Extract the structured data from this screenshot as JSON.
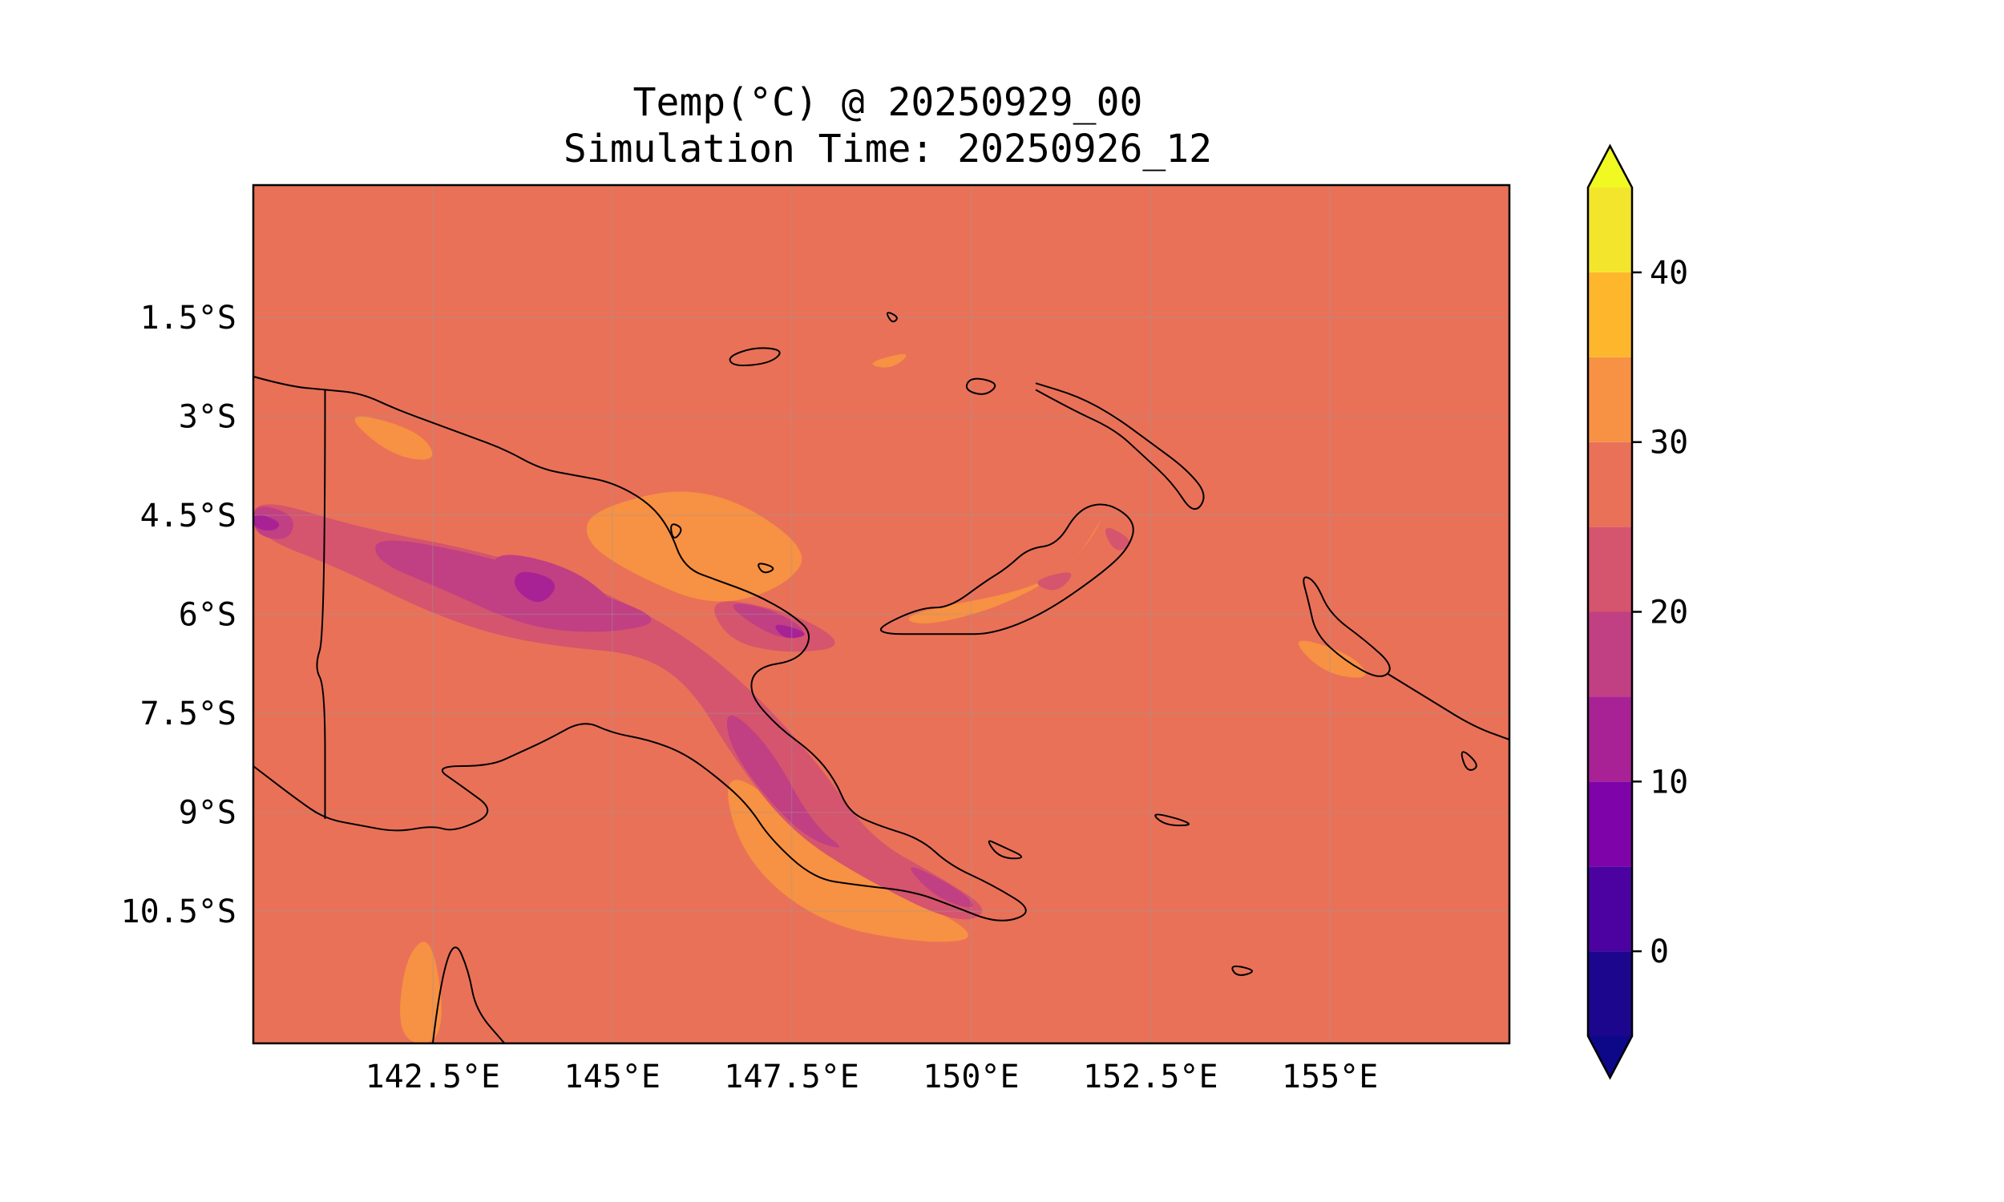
{
  "chart_data": {
    "type": "heatmap",
    "title": "Temp(°C) @ 20250929_00",
    "subtitle": "Simulation Time: 20250926_12",
    "x_range": [
      140.0,
      157.5
    ],
    "y_range": [
      -12.5,
      0.5
    ],
    "x_ticks": [
      {
        "value": 142.5,
        "label": "142.5°E"
      },
      {
        "value": 145.0,
        "label": "145°E"
      },
      {
        "value": 147.5,
        "label": "147.5°E"
      },
      {
        "value": 150.0,
        "label": "150°E"
      },
      {
        "value": 152.5,
        "label": "152.5°E"
      },
      {
        "value": 155.0,
        "label": "155°E"
      }
    ],
    "y_ticks": [
      {
        "value": -1.5,
        "label": "1.5°S"
      },
      {
        "value": -3.0,
        "label": "3°S"
      },
      {
        "value": -4.5,
        "label": "4.5°S"
      },
      {
        "value": -6.0,
        "label": "6°S"
      },
      {
        "value": -7.5,
        "label": "7.5°S"
      },
      {
        "value": -9.0,
        "label": "9°S"
      },
      {
        "value": -10.5,
        "label": "10.5°S"
      }
    ],
    "grid": true,
    "background_level": 27.5,
    "colorbar": {
      "levels": [
        -5,
        0,
        5,
        10,
        15,
        20,
        25,
        30,
        35,
        40,
        45
      ],
      "colors": [
        "#1b068d",
        "#4c02a1",
        "#7e03a8",
        "#a82296",
        "#c13f83",
        "#d5546e",
        "#e97158",
        "#f79143",
        "#feb72d",
        "#f3e52b"
      ],
      "under_color": "#0d0887",
      "over_color": "#f0f921",
      "extend": "both",
      "tick_values": [
        0,
        10,
        20,
        30,
        40
      ],
      "tick_labels": [
        "0",
        "10",
        "20",
        "30",
        "40"
      ]
    },
    "temperature_regions": [
      {
        "level": 32.5,
        "lonlat": [
          [
            144.7,
            -4.4
          ],
          [
            146.3,
            -4.0
          ],
          [
            147.8,
            -5.0
          ],
          [
            147.4,
            -5.6
          ],
          [
            146.4,
            -5.9
          ],
          [
            145.3,
            -5.4
          ],
          [
            144.6,
            -4.9
          ]
        ]
      },
      {
        "level": 32.5,
        "lonlat": [
          [
            141.2,
            -2.9
          ],
          [
            142.3,
            -3.2
          ],
          [
            142.6,
            -3.7
          ],
          [
            141.9,
            -3.6
          ]
        ]
      },
      {
        "level": 32.5,
        "lonlat": [
          [
            146.5,
            -8.3
          ],
          [
            147.4,
            -8.9
          ],
          [
            148.0,
            -9.6
          ],
          [
            149.0,
            -10.2
          ],
          [
            150.2,
            -10.9
          ],
          [
            149.4,
            -11.0
          ],
          [
            147.9,
            -10.7
          ],
          [
            146.8,
            -9.7
          ]
        ]
      },
      {
        "level": 32.5,
        "lonlat": [
          [
            149.0,
            -6.0
          ],
          [
            151.0,
            -5.6
          ],
          [
            151.6,
            -5.0
          ],
          [
            151.9,
            -4.4
          ],
          [
            151.4,
            -5.3
          ],
          [
            150.4,
            -5.9
          ],
          [
            149.3,
            -6.2
          ]
        ]
      },
      {
        "level": 32.5,
        "lonlat": [
          [
            142.1,
            -11.2
          ],
          [
            142.5,
            -10.8
          ],
          [
            142.7,
            -12.5
          ],
          [
            142.0,
            -12.5
          ]
        ]
      },
      {
        "level": 32.5,
        "lonlat": [
          [
            148.5,
            -2.2
          ],
          [
            149.2,
            -2.0
          ],
          [
            148.9,
            -2.3
          ]
        ]
      },
      {
        "level": 32.5,
        "lonlat": [
          [
            154.4,
            -6.3
          ],
          [
            155.3,
            -6.6
          ],
          [
            155.6,
            -7.0
          ],
          [
            154.9,
            -6.9
          ]
        ]
      },
      {
        "level": 22.5,
        "lonlat": [
          [
            140.0,
            -4.2
          ],
          [
            141.5,
            -4.7
          ],
          [
            143.0,
            -5.0
          ],
          [
            144.6,
            -5.5
          ],
          [
            146.0,
            -6.3
          ],
          [
            147.0,
            -7.2
          ],
          [
            147.9,
            -8.3
          ],
          [
            148.6,
            -9.4
          ],
          [
            149.6,
            -10.0
          ],
          [
            150.3,
            -10.5
          ],
          [
            149.8,
            -10.7
          ],
          [
            148.5,
            -10.0
          ],
          [
            147.5,
            -9.3
          ],
          [
            146.7,
            -8.2
          ],
          [
            146.1,
            -7.1
          ],
          [
            145.4,
            -6.6
          ],
          [
            144.3,
            -6.5
          ],
          [
            143.3,
            -6.3
          ],
          [
            142.3,
            -5.9
          ],
          [
            141.2,
            -5.3
          ],
          [
            140.0,
            -4.8
          ]
        ]
      },
      {
        "level": 22.5,
        "lonlat": [
          [
            146.3,
            -5.7
          ],
          [
            147.6,
            -6.0
          ],
          [
            148.3,
            -6.5
          ],
          [
            147.4,
            -6.6
          ],
          [
            146.6,
            -6.4
          ]
        ]
      },
      {
        "level": 22.5,
        "lonlat": [
          [
            151.8,
            -4.6
          ],
          [
            152.3,
            -4.9
          ],
          [
            152.0,
            -5.1
          ]
        ]
      },
      {
        "level": 22.5,
        "lonlat": [
          [
            150.8,
            -5.5
          ],
          [
            151.5,
            -5.3
          ],
          [
            151.2,
            -5.7
          ]
        ]
      },
      {
        "level": 17.5,
        "lonlat": [
          [
            141.7,
            -4.8
          ],
          [
            143.2,
            -5.1
          ],
          [
            144.6,
            -5.6
          ],
          [
            145.8,
            -6.1
          ],
          [
            144.9,
            -6.3
          ],
          [
            143.8,
            -6.2
          ],
          [
            142.6,
            -5.6
          ],
          [
            141.7,
            -5.2
          ]
        ]
      },
      {
        "level": 17.5,
        "lonlat": [
          [
            143.3,
            -5.0
          ],
          [
            144.5,
            -5.3
          ],
          [
            145.2,
            -6.0
          ],
          [
            144.3,
            -6.0
          ],
          [
            143.4,
            -5.6
          ]
        ]
      },
      {
        "level": 17.5,
        "lonlat": [
          [
            146.6,
            -7.4
          ],
          [
            147.2,
            -8.0
          ],
          [
            147.8,
            -9.2
          ],
          [
            148.3,
            -9.6
          ],
          [
            147.7,
            -9.4
          ],
          [
            147.0,
            -8.6
          ],
          [
            146.6,
            -7.9
          ]
        ]
      },
      {
        "level": 17.5,
        "lonlat": [
          [
            149.0,
            -9.7
          ],
          [
            149.9,
            -10.2
          ],
          [
            150.1,
            -10.5
          ],
          [
            149.5,
            -10.3
          ]
        ]
      },
      {
        "level": 17.5,
        "lonlat": [
          [
            146.5,
            -5.8
          ],
          [
            147.2,
            -5.9
          ],
          [
            147.8,
            -6.3
          ],
          [
            147.3,
            -6.4
          ]
        ]
      },
      {
        "level": 17.5,
        "lonlat": [
          [
            140.0,
            -4.3
          ],
          [
            140.6,
            -4.5
          ],
          [
            140.5,
            -4.9
          ],
          [
            140.0,
            -4.8
          ]
        ]
      },
      {
        "level": 12.5,
        "lonlat": [
          [
            140.0,
            -4.45
          ],
          [
            140.4,
            -4.6
          ],
          [
            140.3,
            -4.75
          ],
          [
            140.0,
            -4.7
          ]
        ]
      },
      {
        "level": 12.5,
        "lonlat": [
          [
            147.2,
            -6.1
          ],
          [
            147.8,
            -6.3
          ],
          [
            147.4,
            -6.4
          ]
        ]
      },
      {
        "level": 12.5,
        "lonlat": [
          [
            143.7,
            -5.3
          ],
          [
            144.3,
            -5.5
          ],
          [
            144.0,
            -5.9
          ],
          [
            143.6,
            -5.6
          ]
        ]
      }
    ],
    "coastlines": [
      {
        "closed": false,
        "lonlat": [
          [
            140.0,
            -2.4
          ],
          [
            140.5,
            -2.55
          ],
          [
            141.0,
            -2.6
          ],
          [
            141.5,
            -2.65
          ],
          [
            142.0,
            -2.9
          ],
          [
            142.5,
            -3.1
          ],
          [
            143.0,
            -3.3
          ],
          [
            143.5,
            -3.5
          ],
          [
            144.0,
            -3.8
          ],
          [
            144.5,
            -3.9
          ],
          [
            145.0,
            -4.0
          ],
          [
            145.5,
            -4.3
          ],
          [
            145.8,
            -4.7
          ],
          [
            146.0,
            -5.3
          ],
          [
            146.5,
            -5.5
          ],
          [
            147.0,
            -5.7
          ],
          [
            147.5,
            -6.0
          ],
          [
            147.8,
            -6.3
          ],
          [
            147.6,
            -6.7
          ],
          [
            147.0,
            -6.8
          ],
          [
            146.9,
            -7.2
          ],
          [
            147.3,
            -7.7
          ],
          [
            147.8,
            -8.1
          ],
          [
            148.1,
            -8.5
          ],
          [
            148.3,
            -9.0
          ],
          [
            148.7,
            -9.2
          ],
          [
            149.3,
            -9.4
          ],
          [
            149.7,
            -9.8
          ],
          [
            150.3,
            -10.1
          ],
          [
            150.9,
            -10.5
          ],
          [
            150.4,
            -10.7
          ],
          [
            149.7,
            -10.4
          ],
          [
            149.2,
            -10.2
          ],
          [
            148.4,
            -10.1
          ],
          [
            147.8,
            -10.0
          ],
          [
            147.2,
            -9.4
          ],
          [
            146.9,
            -8.9
          ],
          [
            146.5,
            -8.5
          ],
          [
            146.0,
            -8.1
          ],
          [
            145.5,
            -7.9
          ],
          [
            145.0,
            -7.8
          ],
          [
            144.6,
            -7.6
          ],
          [
            144.1,
            -7.9
          ],
          [
            143.7,
            -8.1
          ],
          [
            143.3,
            -8.3
          ],
          [
            142.5,
            -8.3
          ],
          [
            142.9,
            -8.6
          ],
          [
            143.4,
            -9.0
          ],
          [
            142.8,
            -9.3
          ],
          [
            142.5,
            -9.2
          ],
          [
            142.0,
            -9.3
          ],
          [
            141.5,
            -9.2
          ],
          [
            141.0,
            -9.1
          ],
          [
            140.6,
            -8.8
          ],
          [
            140.0,
            -8.3
          ]
        ]
      },
      {
        "closed": false,
        "lonlat": [
          [
            141.0,
            -2.6
          ],
          [
            141.0,
            -6.3
          ],
          [
            140.85,
            -6.8
          ],
          [
            141.0,
            -7.1
          ],
          [
            141.0,
            -9.1
          ]
        ]
      },
      {
        "closed": true,
        "lonlat": [
          [
            148.7,
            -6.2
          ],
          [
            149.3,
            -5.9
          ],
          [
            149.7,
            -5.9
          ],
          [
            150.2,
            -5.5
          ],
          [
            150.5,
            -5.3
          ],
          [
            150.8,
            -5.0
          ],
          [
            151.2,
            -4.95
          ],
          [
            151.5,
            -4.4
          ],
          [
            151.9,
            -4.3
          ],
          [
            152.3,
            -4.6
          ],
          [
            152.2,
            -5.0
          ],
          [
            151.8,
            -5.4
          ],
          [
            151.0,
            -6.0
          ],
          [
            150.3,
            -6.3
          ],
          [
            149.8,
            -6.3
          ],
          [
            149.3,
            -6.3
          ],
          [
            148.8,
            -6.3
          ]
        ]
      },
      {
        "closed": false,
        "lonlat": [
          [
            150.9,
            -2.6
          ],
          [
            151.4,
            -2.9
          ],
          [
            152.0,
            -3.2
          ],
          [
            152.4,
            -3.6
          ],
          [
            152.8,
            -4.0
          ],
          [
            153.1,
            -4.5
          ],
          [
            153.3,
            -4.2
          ],
          [
            153.0,
            -3.8
          ],
          [
            152.5,
            -3.4
          ],
          [
            152.0,
            -3.0
          ],
          [
            151.5,
            -2.7
          ],
          [
            150.9,
            -2.5
          ]
        ]
      },
      {
        "closed": true,
        "lonlat": [
          [
            154.6,
            -5.4
          ],
          [
            154.8,
            -5.5
          ],
          [
            155.0,
            -6.0
          ],
          [
            155.5,
            -6.4
          ],
          [
            155.9,
            -6.8
          ],
          [
            155.7,
            -7.0
          ],
          [
            155.2,
            -6.7
          ],
          [
            154.8,
            -6.3
          ],
          [
            154.7,
            -5.8
          ]
        ]
      },
      {
        "closed": true,
        "lonlat": [
          [
            146.6,
            -2.1
          ],
          [
            147.0,
            -1.95
          ],
          [
            147.4,
            -2.0
          ],
          [
            147.2,
            -2.2
          ],
          [
            146.7,
            -2.25
          ]
        ]
      },
      {
        "closed": true,
        "lonlat": [
          [
            150.0,
            -2.4
          ],
          [
            150.4,
            -2.5
          ],
          [
            150.2,
            -2.7
          ],
          [
            149.9,
            -2.6
          ]
        ]
      },
      {
        "closed": false,
        "lonlat": [
          [
            155.8,
            -6.9
          ],
          [
            156.4,
            -7.3
          ],
          [
            157.0,
            -7.7
          ],
          [
            157.5,
            -7.9
          ]
        ]
      },
      {
        "closed": true,
        "lonlat": [
          [
            152.5,
            -9.0
          ],
          [
            152.9,
            -9.1
          ],
          [
            153.1,
            -9.2
          ],
          [
            152.7,
            -9.2
          ]
        ]
      },
      {
        "closed": true,
        "lonlat": [
          [
            150.2,
            -9.4
          ],
          [
            150.4,
            -9.5
          ],
          [
            150.8,
            -9.7
          ],
          [
            150.4,
            -9.7
          ]
        ]
      },
      {
        "closed": true,
        "lonlat": [
          [
            153.6,
            -11.3
          ],
          [
            154.0,
            -11.4
          ],
          [
            153.7,
            -11.5
          ]
        ]
      },
      {
        "closed": true,
        "lonlat": [
          [
            147.0,
            -5.2
          ],
          [
            147.3,
            -5.3
          ],
          [
            147.1,
            -5.4
          ]
        ]
      },
      {
        "closed": true,
        "lonlat": [
          [
            145.8,
            -4.6
          ],
          [
            146.0,
            -4.7
          ],
          [
            145.85,
            -4.9
          ]
        ]
      },
      {
        "closed": true,
        "lonlat": [
          [
            156.8,
            -8.0
          ],
          [
            157.1,
            -8.3
          ],
          [
            156.9,
            -8.4
          ]
        ]
      },
      {
        "closed": false,
        "lonlat": [
          [
            142.5,
            -12.5
          ],
          [
            142.6,
            -11.6
          ],
          [
            142.8,
            -10.9
          ],
          [
            143.0,
            -11.4
          ],
          [
            143.1,
            -12.0
          ],
          [
            143.5,
            -12.5
          ]
        ]
      },
      {
        "closed": true,
        "lonlat": [
          [
            148.8,
            -1.4
          ],
          [
            149.0,
            -1.5
          ],
          [
            148.9,
            -1.6
          ]
        ]
      }
    ]
  }
}
